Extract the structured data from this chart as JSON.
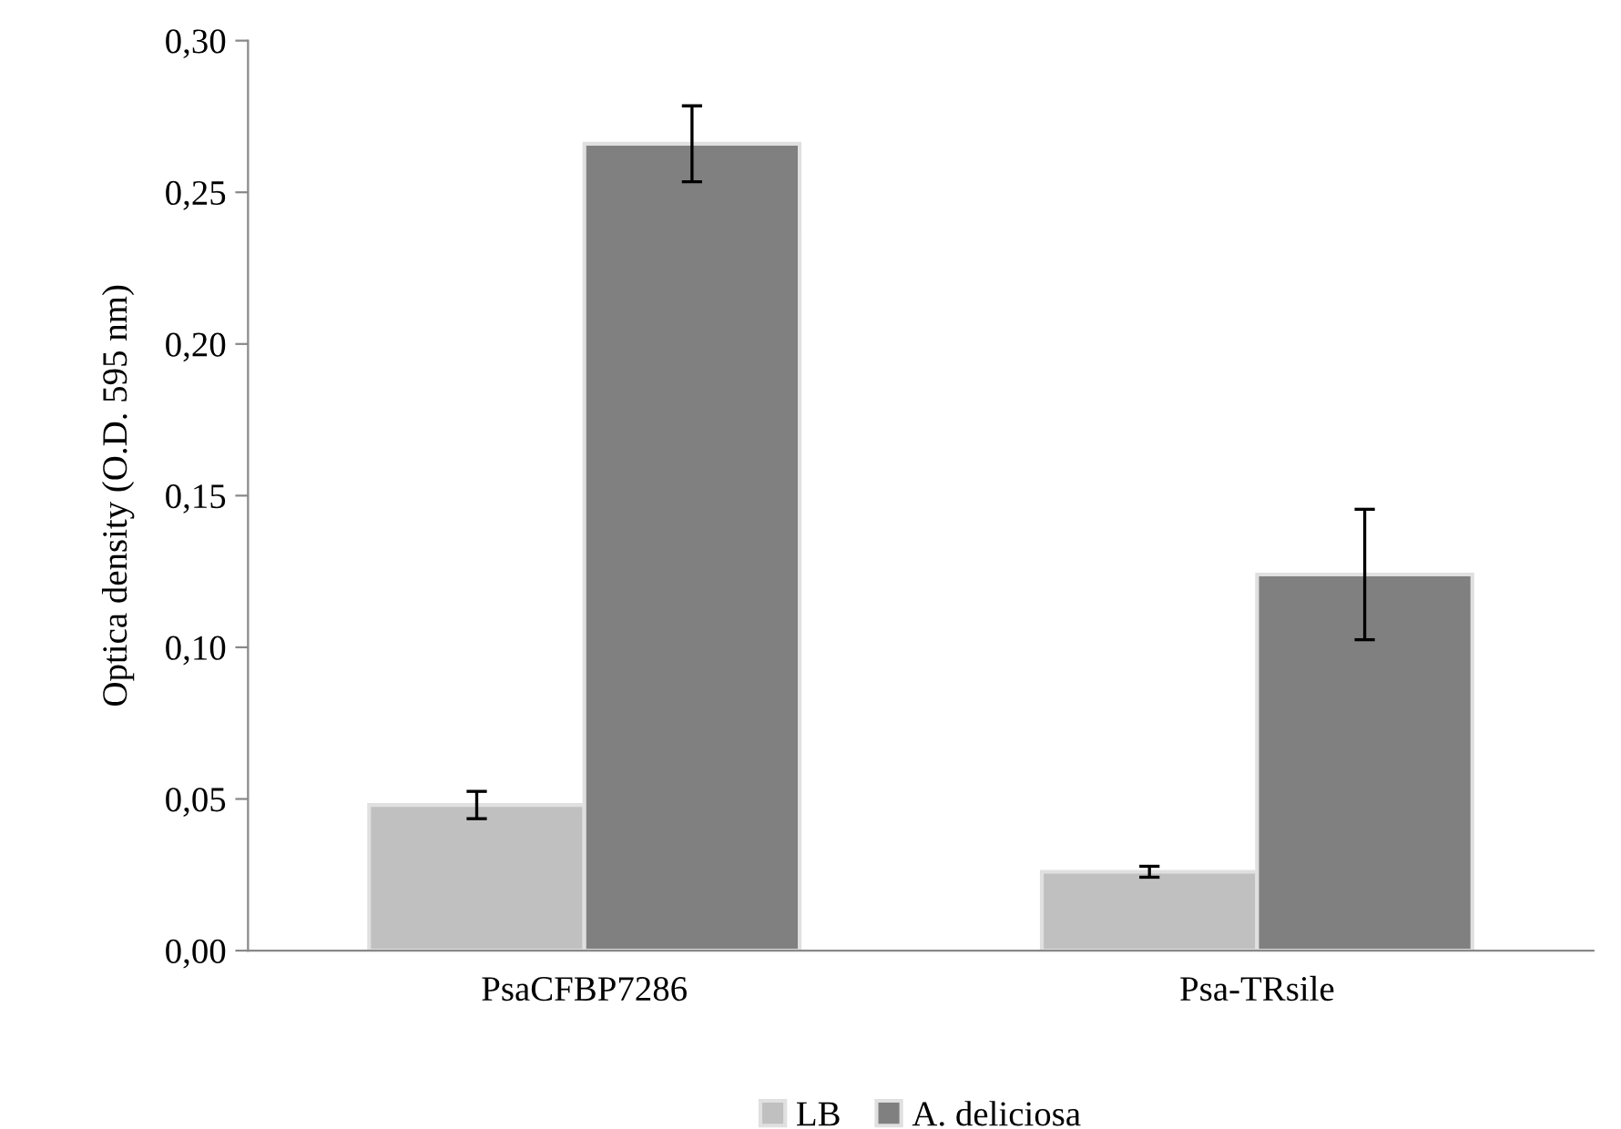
{
  "chart_data": {
    "type": "bar",
    "ylabel": "Optica density (O.D. 595 nm)",
    "categories": [
      "PsaCFBP7286",
      "Psa-TRsile"
    ],
    "series": [
      {
        "name": "LB",
        "color": "#c0c0c0",
        "values": [
          0.048,
          0.026
        ],
        "errors": [
          0.0045,
          0.0018
        ]
      },
      {
        "name": "A. deliciosa",
        "color": "#808080",
        "values": [
          0.266,
          0.124
        ],
        "errors": [
          0.0125,
          0.0215
        ]
      }
    ],
    "ylim": [
      0,
      0.3
    ],
    "yticks": [
      {
        "value": 0,
        "label": "0,00"
      },
      {
        "value": 0.05,
        "label": "0,05"
      },
      {
        "value": 0.1,
        "label": "0,10"
      },
      {
        "value": 0.15,
        "label": "0,15"
      },
      {
        "value": 0.2,
        "label": "0,20"
      },
      {
        "value": 0.25,
        "label": "0,25"
      },
      {
        "value": 0.3,
        "label": "0,30"
      }
    ],
    "grid": false,
    "legend": "bottom"
  }
}
